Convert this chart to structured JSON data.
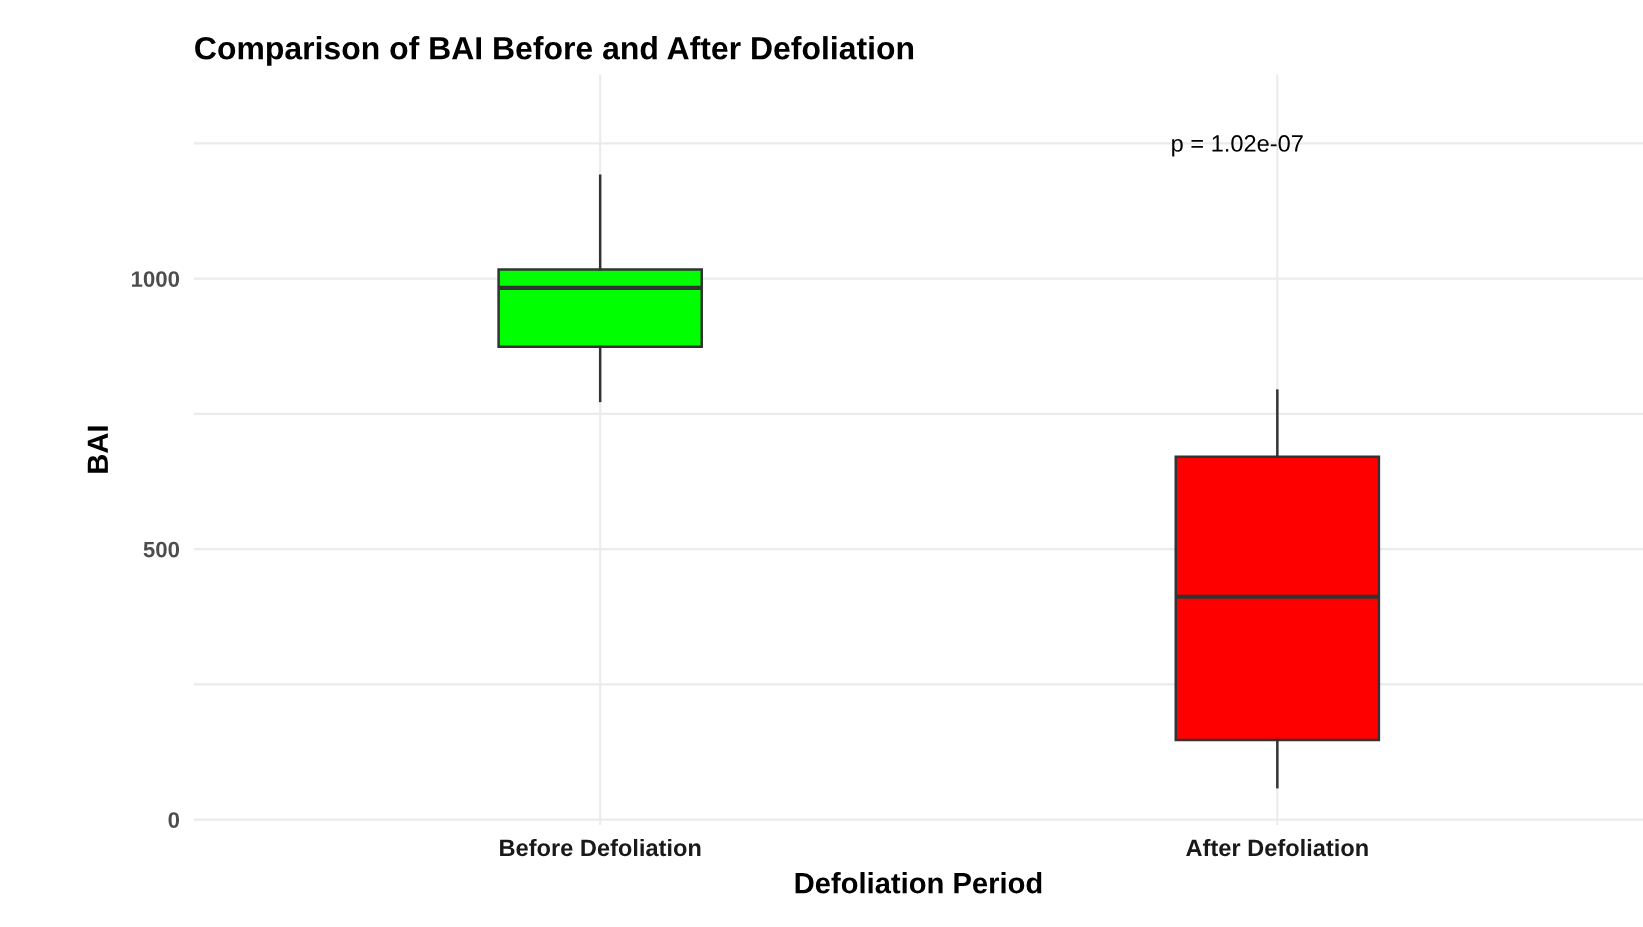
{
  "chart_data": {
    "type": "box",
    "title": "Comparison of BAI Before and After Defoliation",
    "xlabel": "Defoliation Period",
    "ylabel": "BAI",
    "categories": [
      "Before Defoliation",
      "After Defoliation"
    ],
    "boxes": [
      {
        "low": 774,
        "q1": 874,
        "median": 983,
        "q3": 1017,
        "high": 1190
      },
      {
        "low": 60,
        "q1": 147,
        "median": 412,
        "q3": 671,
        "high": 793
      }
    ],
    "colors": [
      "#00ff00",
      "#ff0000"
    ],
    "ylim": [
      -10,
      1378
    ],
    "yticks": [
      0,
      {
        "value": 250,
        "label": null
      },
      500,
      {
        "value": 750,
        "label": null
      },
      1000,
      {
        "value": 1250,
        "label": null
      }
    ],
    "grid": true,
    "annotations": [
      "p = 1.02e-07"
    ]
  }
}
